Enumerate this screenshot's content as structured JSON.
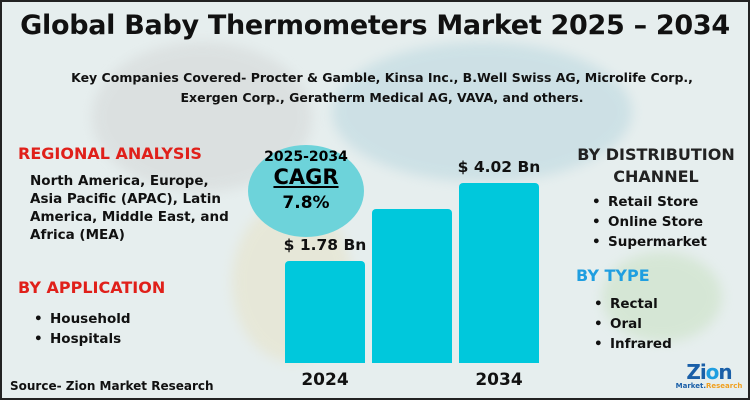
{
  "title": "Global Baby Thermometers Market 2025 – 2034",
  "companies": "Key Companies Covered- Procter & Gamble, Kinsa Inc., B.Well Swiss AG, Microlife Corp., Exergen Corp., Geratherm Medical AG, VAVA, and others.",
  "regional": {
    "heading": "REGIONAL ANALYSIS",
    "text": "North America, Europe, Asia Pacific (APAC), Latin America, Middle East, and Africa (MEA)"
  },
  "application": {
    "heading": "BY APPLICATION",
    "items": [
      "Household",
      "Hospitals"
    ]
  },
  "distribution": {
    "heading_1": "BY DISTRIBUTION",
    "heading_2": "CHANNEL",
    "items": [
      "Retail Store",
      "Online Store",
      "Supermarket"
    ]
  },
  "type": {
    "heading": "BY TYPE",
    "items": [
      "Rectal",
      "Oral",
      "Infrared"
    ]
  },
  "cagr": {
    "period": "2025-2034",
    "label": "CAGR",
    "value": "7.8%"
  },
  "source": "Source- Zion Market Research",
  "logo": {
    "top": "Zion",
    "bottom": "Market.Research"
  },
  "colors": {
    "bar": "#00c8dc",
    "heading": "#e0201a",
    "accent_blue": "#1f9ee0",
    "cagr_bubble": "#6dd3da"
  },
  "chart_data": {
    "type": "bar",
    "categories": [
      "2024",
      "",
      "2034"
    ],
    "values": [
      1.78,
      3.28,
      4.02
    ],
    "data_labels": [
      "$ 1.78 Bn",
      "",
      "$ 4.02 Bn"
    ],
    "unit": "USD Bn",
    "note": "middle bar unlabeled; value estimated"
  }
}
